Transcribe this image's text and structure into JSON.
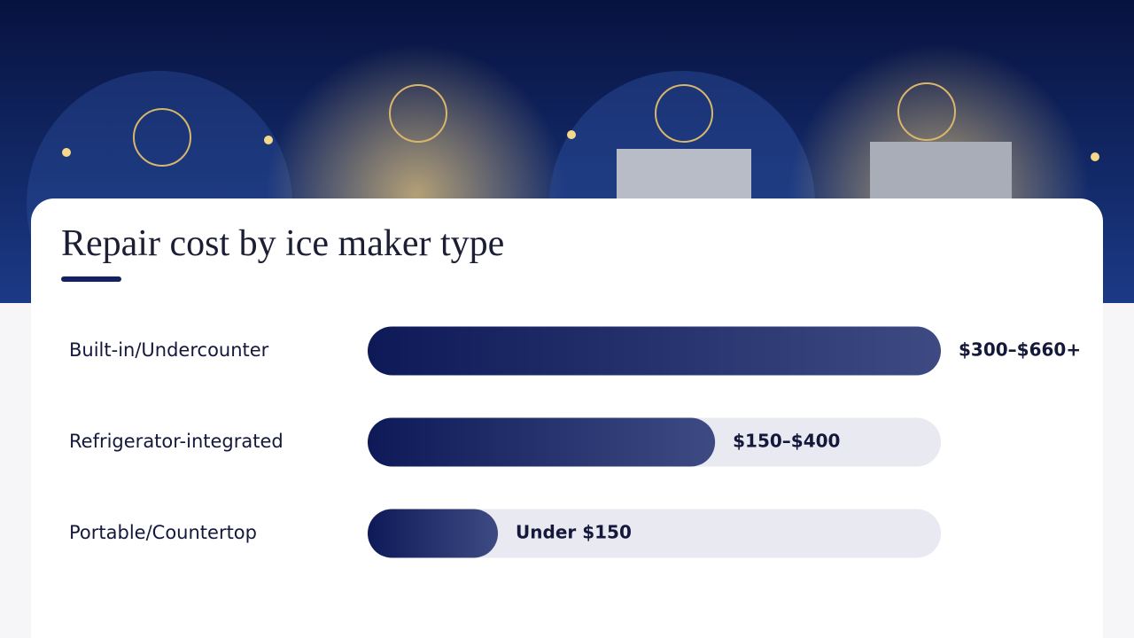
{
  "chart_data": {
    "type": "bar",
    "orientation": "horizontal",
    "title": "Repair cost by ice maker type",
    "categories": [
      "Built-in/Undercounter",
      "Refrigerator-integrated",
      "Portable/Countertop"
    ],
    "values": [
      660,
      400,
      150
    ],
    "value_labels": [
      "$300–$660+",
      "$150–$400",
      "Under $150"
    ],
    "color": "#14225f"
  }
}
